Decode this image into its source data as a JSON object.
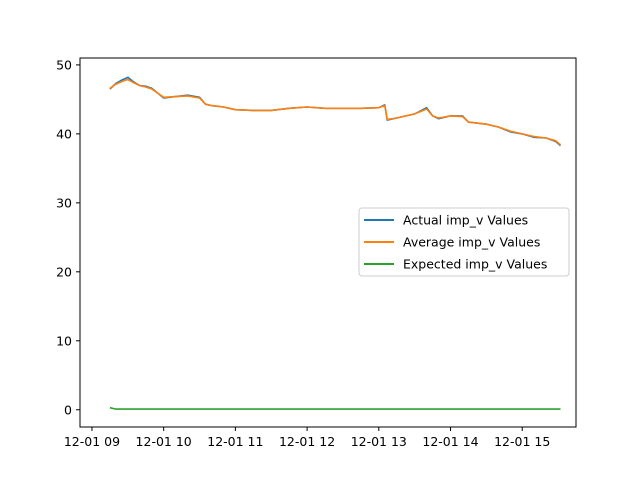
{
  "chart_data": {
    "type": "line",
    "title": "",
    "xlabel": "",
    "ylabel": "",
    "x_tick_labels": [
      "12-01 09",
      "12-01 10",
      "12-01 11",
      "12-01 12",
      "12-01 13",
      "12-01 14",
      "12-01 15"
    ],
    "y_ticks": [
      0,
      10,
      20,
      30,
      40,
      50
    ],
    "xlim": [
      "12-01 08:50",
      "12-01 15:45"
    ],
    "ylim": [
      -2.5,
      51
    ],
    "grid": false,
    "legend_position": "center-right",
    "x": [
      "09:15",
      "09:20",
      "09:25",
      "09:30",
      "09:35",
      "09:40",
      "09:45",
      "09:50",
      "10:00",
      "10:10",
      "10:20",
      "10:30",
      "10:35",
      "10:40",
      "10:50",
      "11:00",
      "11:15",
      "11:30",
      "11:45",
      "12:00",
      "12:15",
      "12:30",
      "12:45",
      "13:00",
      "13:05",
      "13:07",
      "13:15",
      "13:30",
      "13:40",
      "13:45",
      "13:50",
      "14:00",
      "14:10",
      "14:15",
      "14:30",
      "14:40",
      "14:50",
      "15:00",
      "15:10",
      "15:20",
      "15:28",
      "15:32"
    ],
    "series": [
      {
        "name": "Actual imp_v Values",
        "color": "#1f77b4",
        "values": [
          46.5,
          47.3,
          47.8,
          48.2,
          47.5,
          47.0,
          46.9,
          46.6,
          45.2,
          45.4,
          45.6,
          45.3,
          44.3,
          44.1,
          43.9,
          43.5,
          43.4,
          43.4,
          43.7,
          43.9,
          43.7,
          43.7,
          43.7,
          43.8,
          44.2,
          42.0,
          42.3,
          42.9,
          43.8,
          42.6,
          42.2,
          42.6,
          42.6,
          41.7,
          41.4,
          41.0,
          40.3,
          40.0,
          39.5,
          39.4,
          38.9,
          38.3
        ]
      },
      {
        "name": "Average imp_v Values",
        "color": "#ff7f0e",
        "values": [
          46.6,
          47.2,
          47.6,
          47.9,
          47.4,
          47.0,
          46.8,
          46.5,
          45.3,
          45.4,
          45.5,
          45.2,
          44.3,
          44.1,
          43.9,
          43.5,
          43.4,
          43.4,
          43.7,
          43.9,
          43.7,
          43.7,
          43.7,
          43.8,
          44.1,
          42.1,
          42.3,
          42.9,
          43.6,
          42.6,
          42.3,
          42.6,
          42.5,
          41.7,
          41.4,
          41.0,
          40.4,
          40.0,
          39.6,
          39.4,
          39.0,
          38.4
        ]
      },
      {
        "name": "Expected imp_v Values",
        "color": "#2ca02c",
        "values": [
          0.3,
          0.1,
          0.1,
          0.1,
          0.1,
          0.1,
          0.1,
          0.1,
          0.1,
          0.1,
          0.1,
          0.1,
          0.1,
          0.1,
          0.1,
          0.1,
          0.1,
          0.1,
          0.1,
          0.1,
          0.1,
          0.1,
          0.1,
          0.1,
          0.1,
          0.1,
          0.1,
          0.1,
          0.1,
          0.1,
          0.1,
          0.1,
          0.1,
          0.1,
          0.1,
          0.1,
          0.1,
          0.1,
          0.1,
          0.1,
          0.1,
          0.1
        ]
      }
    ]
  }
}
